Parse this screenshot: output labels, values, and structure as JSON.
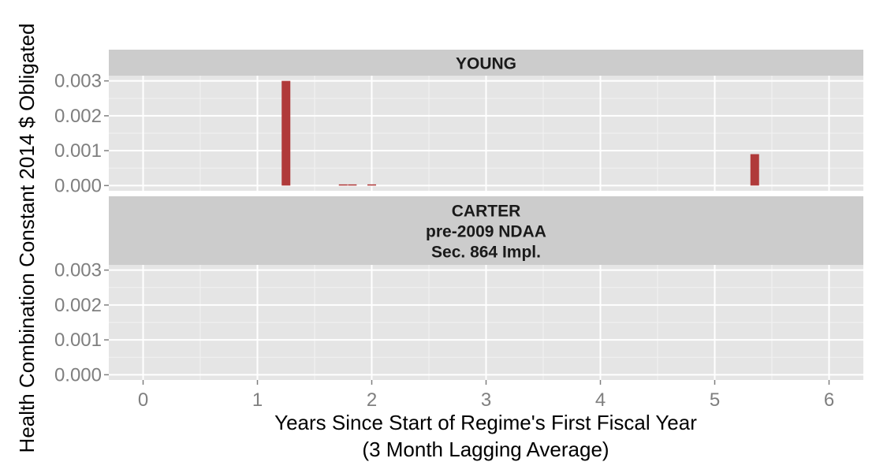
{
  "chart_data": {
    "type": "bar",
    "xlabel": "Years Since Start of Regime's First Fiscal Year",
    "xlabel_sub": "(3 Month Lagging Average)",
    "ylabel": "Health Combination Constant 2014 $ Obligated",
    "xlim": [
      -0.3,
      6.3
    ],
    "ylim": [
      -0.00015,
      0.00315
    ],
    "x_ticks": [
      0,
      1,
      2,
      3,
      4,
      5,
      6
    ],
    "x_tick_labels": [
      "0",
      "1",
      "2",
      "3",
      "4",
      "5",
      "6"
    ],
    "y_ticks": [
      0,
      0.001,
      0.002,
      0.003
    ],
    "y_tick_labels": [
      "0.000",
      "0.001",
      "0.002",
      "0.003"
    ],
    "bar_color": "#b03a3a",
    "panel_background": "#e5e5e5",
    "strip_background": "#cccccc",
    "grid": true,
    "facets": [
      {
        "strip_lines": [
          "YOUNG"
        ],
        "bars": [
          {
            "x": 1.25,
            "y": 0.003
          },
          {
            "x": 1.75,
            "y": 1.5e-05
          },
          {
            "x": 1.83,
            "y": 1.5e-05
          },
          {
            "x": 2.0,
            "y": 1e-05
          },
          {
            "x": 5.35,
            "y": 0.0009
          }
        ]
      },
      {
        "strip_lines": [
          "CARTER",
          "pre-2009 NDAA",
          "Sec. 864 Impl."
        ],
        "bars": []
      }
    ]
  }
}
